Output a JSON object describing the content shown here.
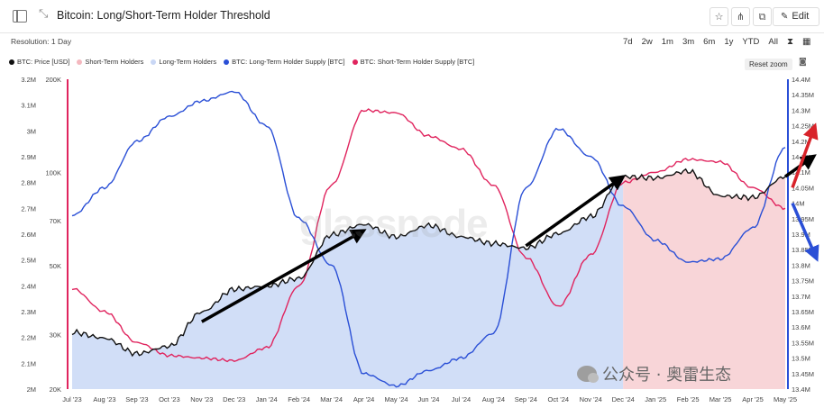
{
  "header": {
    "title": "Bitcoin: Long/Short-Term Holder Threshold",
    "edit_label": "Edit"
  },
  "controls": {
    "resolution": "Resolution: 1 Day",
    "ranges": [
      "7d",
      "2w",
      "1m",
      "3m",
      "6m",
      "1y",
      "YTD",
      "All"
    ],
    "reset_zoom": "Reset zoom"
  },
  "watermark": "glassnode",
  "wechat_label": "公众号 · 奥雷生态",
  "colors": {
    "price": "#111111",
    "lth_supply": "#2a4fd6",
    "sth_supply": "#e0245e",
    "lth_area": "#cfdcf7",
    "sth_area": "#f8d3d6"
  },
  "chart_data": {
    "type": "line",
    "legend": [
      {
        "name": "BTC: Price [USD]",
        "color": "#111111"
      },
      {
        "name": "Short-Term Holders",
        "color": "#f4b8bf"
      },
      {
        "name": "Long-Term Holders",
        "color": "#c9d7f5"
      },
      {
        "name": "BTC: Long-Term Holder Supply [BTC]",
        "color": "#2a4fd6"
      },
      {
        "name": "BTC: Short-Term Holder Supply [BTC]",
        "color": "#e0245e"
      }
    ],
    "x_ticks": [
      "Jul '23",
      "Aug '23",
      "Sep '23",
      "Oct '23",
      "Nov '23",
      "Dec '23",
      "Jan '24",
      "Feb '24",
      "Mar '24",
      "Apr '24",
      "May '24",
      "Jun '24",
      "Jul '24",
      "Aug '24",
      "Sep '24",
      "Oct '24",
      "Nov '24",
      "Dec '24",
      "Jan '25",
      "Feb '25",
      "Mar '25",
      "Apr '25",
      "May '25"
    ],
    "left_axis_sth_supply": {
      "ticks": [
        "2M",
        "2.1M",
        "2.2M",
        "2.3M",
        "2.4M",
        "2.5M",
        "2.6M",
        "2.7M",
        "2.8M",
        "2.9M",
        "3M",
        "3.1M",
        "3.2M"
      ],
      "range": [
        2000000,
        3200000
      ]
    },
    "price_axis": {
      "ticks": [
        "20K",
        "30K",
        "50K",
        "70K",
        "100K",
        "200K"
      ],
      "scale": "log",
      "range": [
        20000,
        200000
      ]
    },
    "right_axis_lth_supply": {
      "ticks": [
        "13.4M",
        "13.45M",
        "13.5M",
        "13.55M",
        "13.6M",
        "13.65M",
        "13.7M",
        "13.75M",
        "13.8M",
        "13.85M",
        "13.9M",
        "13.95M",
        "14M",
        "14.05M",
        "14.1M",
        "14.15M",
        "14.2M",
        "14.25M",
        "14.3M",
        "14.35M",
        "14.4M"
      ],
      "range": [
        13400000,
        14400000
      ]
    },
    "series": [
      {
        "name": "BTC: Price [USD]",
        "axis": "price",
        "points": [
          [
            "Jul '23",
            30500
          ],
          [
            "Aug '23",
            29200
          ],
          [
            "Sep '23",
            26000
          ],
          [
            "Oct '23",
            27500
          ],
          [
            "Nov '23",
            35500
          ],
          [
            "Dec '23",
            42000
          ],
          [
            "Jan '24",
            43000
          ],
          [
            "Feb '24",
            45500
          ],
          [
            "Mar '24",
            63000
          ],
          [
            "Apr '24",
            68000
          ],
          [
            "May '24",
            62000
          ],
          [
            "Jun '24",
            67500
          ],
          [
            "Jul '24",
            62000
          ],
          [
            "Aug '24",
            59000
          ],
          [
            "Sep '24",
            57000
          ],
          [
            "Oct '24",
            63500
          ],
          [
            "Nov '24",
            72000
          ],
          [
            "Dec '24",
            97000
          ],
          [
            "Jan '25",
            96000
          ],
          [
            "Feb '25",
            101000
          ],
          [
            "Mar '25",
            84000
          ],
          [
            "Apr '25",
            83000
          ],
          [
            "May '25",
            97000
          ]
        ]
      },
      {
        "name": "BTC: Long-Term Holder Supply [BTC]",
        "axis": "right",
        "points": [
          [
            "Jul '23",
            13960000
          ],
          [
            "Aug '23",
            14050000
          ],
          [
            "Sep '23",
            14200000
          ],
          [
            "Oct '23",
            14280000
          ],
          [
            "Nov '23",
            14330000
          ],
          [
            "Dec '23",
            14360000
          ],
          [
            "Jan '24",
            14250000
          ],
          [
            "Feb '24",
            13950000
          ],
          [
            "Mar '24",
            13800000
          ],
          [
            "Apr '24",
            13450000
          ],
          [
            "May '24",
            13410000
          ],
          [
            "Jun '24",
            13460000
          ],
          [
            "Jul '24",
            13500000
          ],
          [
            "Aug '24",
            13580000
          ],
          [
            "Sep '24",
            14050000
          ],
          [
            "Oct '24",
            14240000
          ],
          [
            "Nov '24",
            14150000
          ],
          [
            "Dec '24",
            13990000
          ],
          [
            "Jan '25",
            13880000
          ],
          [
            "Feb '25",
            13810000
          ],
          [
            "Mar '25",
            13820000
          ],
          [
            "Apr '25",
            13920000
          ],
          [
            "May '25",
            14180000
          ]
        ]
      },
      {
        "name": "BTC: Short-Term Holder Supply [BTC]",
        "axis": "left",
        "points": [
          [
            "Jul '23",
            2390000
          ],
          [
            "Aug '23",
            2300000
          ],
          [
            "Sep '23",
            2180000
          ],
          [
            "Oct '23",
            2130000
          ],
          [
            "Nov '23",
            2120000
          ],
          [
            "Dec '23",
            2110000
          ],
          [
            "Jan '24",
            2160000
          ],
          [
            "Feb '24",
            2400000
          ],
          [
            "Mar '24",
            2790000
          ],
          [
            "Apr '24",
            3080000
          ],
          [
            "May '24",
            3070000
          ],
          [
            "Jun '24",
            2980000
          ],
          [
            "Jul '24",
            2930000
          ],
          [
            "Aug '24",
            2790000
          ],
          [
            "Sep '24",
            2510000
          ],
          [
            "Oct '24",
            2320000
          ],
          [
            "Nov '24",
            2520000
          ],
          [
            "Dec '24",
            2800000
          ],
          [
            "Jan '25",
            2840000
          ],
          [
            "Feb '25",
            2890000
          ],
          [
            "Mar '25",
            2880000
          ],
          [
            "Apr '25",
            2780000
          ],
          [
            "May '25",
            2700000
          ]
        ]
      }
    ],
    "shading": [
      {
        "series": "Long-Term Holders",
        "from": "Jul '23",
        "to": "Dec '24"
      },
      {
        "series": "Short-Term Holders",
        "from": "Dec '24",
        "to": "May '25"
      }
    ],
    "annotations": [
      {
        "type": "arrow",
        "color": "#000000",
        "from": [
          "Nov '23",
          33000
        ],
        "to": [
          "Apr '24",
          65000
        ]
      },
      {
        "type": "arrow",
        "color": "#000000",
        "from": [
          "Sep '24",
          58000
        ],
        "to": [
          "Dec '24",
          97000
        ]
      },
      {
        "type": "arrow",
        "color": "#000000",
        "from": [
          "May '25",
          97000
        ],
        "to": [
          "May '25",
          113000
        ]
      },
      {
        "type": "arrow",
        "color": "#d8232a",
        "target_axis": "right",
        "to_value": 14250000
      },
      {
        "type": "arrow",
        "color": "#2a4fd6",
        "target_axis": "right",
        "to_value": 13820000
      }
    ]
  }
}
